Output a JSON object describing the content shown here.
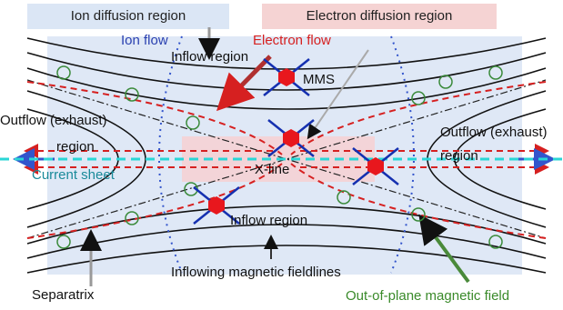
{
  "labels": {
    "ion_diffusion_region": "Ion diffusion region",
    "electron_diffusion_region": "Electron diffusion region",
    "ion_flow": "Ion flow",
    "electron_flow": "Electron flow",
    "inflow_region_top": "Inflow region",
    "mms": "MMS",
    "outflow_left_1": "Outflow (exhaust)",
    "outflow_left_2": "region",
    "outflow_right_1": "Outflow (exhaust)",
    "outflow_right_2": "region",
    "current_sheet": "Current sheet",
    "x_line": "X-line",
    "inflow_region_bottom": "Inflow region",
    "inflowing_fieldlines": "Inflowing magnetic fieldlines",
    "separatrix": "Separatrix",
    "out_of_plane_field": "Out-of-plane magnetic field"
  }
}
